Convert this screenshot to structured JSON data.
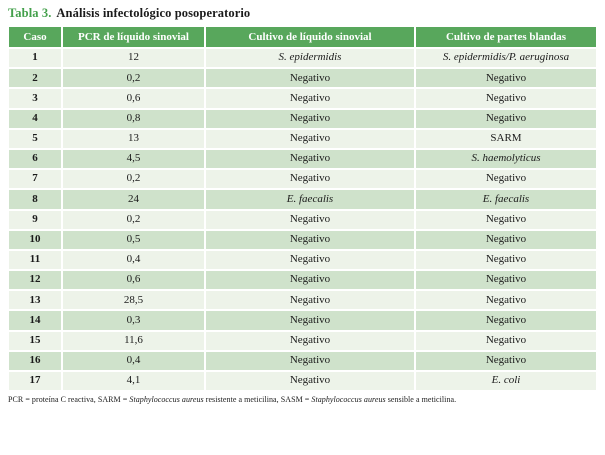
{
  "title": {
    "label": "Tabla 3.",
    "text": "Análisis infectológico posoperatorio"
  },
  "colors": {
    "header_bg": "#58a75c",
    "row_odd_bg": "#edf3e9",
    "row_even_bg": "#cfe2cb",
    "title_accent": "#44a04c",
    "header_text": "#ffffff",
    "body_text": "#1b1b1b"
  },
  "table": {
    "columns": [
      "Caso",
      "PCR de líquido sinovial",
      "Cultivo de líquido sinovial",
      "Cultivo de partes blandas"
    ],
    "rows": [
      {
        "caso": "1",
        "pcr": "12",
        "liquido": "S. epidermidis",
        "liquido_italic": true,
        "partes": "S. epidermidis/P. aeruginosa",
        "partes_italic": true
      },
      {
        "caso": "2",
        "pcr": "0,2",
        "liquido": "Negativo",
        "liquido_italic": false,
        "partes": "Negativo",
        "partes_italic": false
      },
      {
        "caso": "3",
        "pcr": "0,6",
        "liquido": "Negativo",
        "liquido_italic": false,
        "partes": "Negativo",
        "partes_italic": false
      },
      {
        "caso": "4",
        "pcr": "0,8",
        "liquido": "Negativo",
        "liquido_italic": false,
        "partes": "Negativo",
        "partes_italic": false
      },
      {
        "caso": "5",
        "pcr": "13",
        "liquido": "Negativo",
        "liquido_italic": false,
        "partes": "SARM",
        "partes_italic": false
      },
      {
        "caso": "6",
        "pcr": "4,5",
        "liquido": "Negativo",
        "liquido_italic": false,
        "partes": "S. haemolyticus",
        "partes_italic": true
      },
      {
        "caso": "7",
        "pcr": "0,2",
        "liquido": "Negativo",
        "liquido_italic": false,
        "partes": "Negativo",
        "partes_italic": false
      },
      {
        "caso": "8",
        "pcr": "24",
        "liquido": "E. faecalis",
        "liquido_italic": true,
        "partes": "E. faecalis",
        "partes_italic": true
      },
      {
        "caso": "9",
        "pcr": "0,2",
        "liquido": "Negativo",
        "liquido_italic": false,
        "partes": "Negativo",
        "partes_italic": false
      },
      {
        "caso": "10",
        "pcr": "0,5",
        "liquido": "Negativo",
        "liquido_italic": false,
        "partes": "Negativo",
        "partes_italic": false
      },
      {
        "caso": "11",
        "pcr": "0,4",
        "liquido": "Negativo",
        "liquido_italic": false,
        "partes": "Negativo",
        "partes_italic": false
      },
      {
        "caso": "12",
        "pcr": "0,6",
        "liquido": "Negativo",
        "liquido_italic": false,
        "partes": "Negativo",
        "partes_italic": false
      },
      {
        "caso": "13",
        "pcr": "28,5",
        "liquido": "Negativo",
        "liquido_italic": false,
        "partes": "Negativo",
        "partes_italic": false
      },
      {
        "caso": "14",
        "pcr": "0,3",
        "liquido": "Negativo",
        "liquido_italic": false,
        "partes": "Negativo",
        "partes_italic": false
      },
      {
        "caso": "15",
        "pcr": "11,6",
        "liquido": "Negativo",
        "liquido_italic": false,
        "partes": "Negativo",
        "partes_italic": false
      },
      {
        "caso": "16",
        "pcr": "0,4",
        "liquido": "Negativo",
        "liquido_italic": false,
        "partes": "Negativo",
        "partes_italic": false
      },
      {
        "caso": "17",
        "pcr": "4,1",
        "liquido": "Negativo",
        "liquido_italic": false,
        "partes": "E. coli",
        "partes_italic": true
      }
    ]
  },
  "footnote": {
    "segments": [
      {
        "text": "PCR = proteína C reactiva, SARM = ",
        "italic": false
      },
      {
        "text": "Staphylococcus aureus",
        "italic": true
      },
      {
        "text": " resistente a meticilina, SASM = ",
        "italic": false
      },
      {
        "text": "Staphylococcus aureus",
        "italic": true
      },
      {
        "text": " sensible a meticilina.",
        "italic": false
      }
    ]
  }
}
